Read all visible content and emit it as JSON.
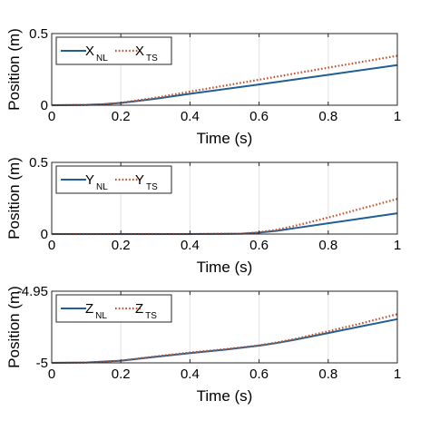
{
  "colors": {
    "nl": "#1f5f96",
    "ts": "#c0522b",
    "axis": "#262626",
    "grid": "#e3e3e3"
  },
  "chart_data": [
    {
      "type": "line",
      "xlabel": "Time (s)",
      "ylabel": "Position (m)",
      "xlim": [
        0,
        1
      ],
      "ylim": [
        0,
        0.5
      ],
      "xticks": [
        "0",
        "0.2",
        "0.4",
        "0.6",
        "0.8",
        "1"
      ],
      "yticks": [
        "0",
        "0.5"
      ],
      "grid": true,
      "legend_position": "top-left",
      "series": [
        {
          "name": "X",
          "sub": "NL",
          "style": "solid",
          "x": [
            0,
            0.1,
            0.15,
            0.2,
            0.3,
            0.4,
            0.6,
            0.8,
            1.0
          ],
          "y": [
            0,
            0.002,
            0.007,
            0.016,
            0.045,
            0.08,
            0.145,
            0.212,
            0.28
          ]
        },
        {
          "name": "X",
          "sub": "TS",
          "style": "dotted",
          "x": [
            0,
            0.1,
            0.15,
            0.2,
            0.3,
            0.4,
            0.6,
            0.8,
            1.0
          ],
          "y": [
            0,
            0.002,
            0.007,
            0.017,
            0.052,
            0.095,
            0.178,
            0.262,
            0.345
          ]
        }
      ]
    },
    {
      "type": "line",
      "xlabel": "Time (s)",
      "ylabel": "Position (m)",
      "xlim": [
        0,
        1
      ],
      "ylim": [
        0,
        0.5
      ],
      "xticks": [
        "0",
        "0.2",
        "0.4",
        "0.6",
        "0.8",
        "1"
      ],
      "yticks": [
        "0",
        "0.5"
      ],
      "grid": true,
      "legend_position": "top-left",
      "series": [
        {
          "name": "Y",
          "sub": "NL",
          "style": "solid",
          "x": [
            0,
            0.2,
            0.4,
            0.55,
            0.6,
            0.65,
            0.7,
            0.8,
            0.9,
            1.0
          ],
          "y": [
            0,
            0,
            0,
            0.002,
            0.01,
            0.022,
            0.04,
            0.075,
            0.11,
            0.145
          ]
        },
        {
          "name": "Y",
          "sub": "TS",
          "style": "dotted",
          "x": [
            0,
            0.2,
            0.4,
            0.55,
            0.6,
            0.65,
            0.7,
            0.8,
            0.9,
            1.0
          ],
          "y": [
            0,
            0,
            0,
            0.003,
            0.012,
            0.03,
            0.055,
            0.115,
            0.18,
            0.245
          ]
        }
      ]
    },
    {
      "type": "line",
      "xlabel": "Time (s)",
      "ylabel": "Position (m)",
      "xlim": [
        0,
        1
      ],
      "ylim": [
        -5,
        -4.95
      ],
      "xticks": [
        "0",
        "0.2",
        "0.4",
        "0.6",
        "0.8",
        "1"
      ],
      "yticks": [
        "-5",
        "-4.95"
      ],
      "grid": true,
      "legend_position": "top-left",
      "series": [
        {
          "name": "Z",
          "sub": "NL",
          "style": "solid",
          "x": [
            0,
            0.1,
            0.2,
            0.3,
            0.4,
            0.5,
            0.6,
            0.65,
            0.7,
            0.8,
            0.9,
            1.0
          ],
          "y": [
            -5.0,
            -4.9998,
            -4.9985,
            -4.9958,
            -4.9932,
            -4.9908,
            -4.988,
            -4.9862,
            -4.984,
            -4.9792,
            -4.9743,
            -4.9695
          ]
        },
        {
          "name": "Z",
          "sub": "TS",
          "style": "dotted",
          "x": [
            0,
            0.1,
            0.2,
            0.3,
            0.4,
            0.5,
            0.6,
            0.65,
            0.7,
            0.8,
            0.9,
            1.0
          ],
          "y": [
            -5.0,
            -4.9998,
            -4.9985,
            -4.9955,
            -4.9928,
            -4.9905,
            -4.9878,
            -4.9858,
            -4.9835,
            -4.978,
            -4.9722,
            -4.966
          ]
        }
      ]
    }
  ]
}
